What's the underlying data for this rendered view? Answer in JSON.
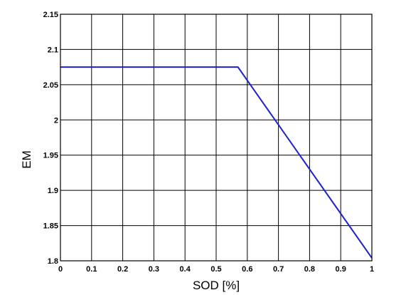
{
  "chart_data": {
    "type": "line",
    "title": "",
    "xlabel": "SOD [%]",
    "ylabel": "EM",
    "xlim": [
      0,
      1
    ],
    "ylim": [
      1.8,
      2.15
    ],
    "xticks": [
      "0",
      "0.1",
      "0.2",
      "0.3",
      "0.4",
      "0.5",
      "0.6",
      "0.7",
      "0.8",
      "0.9",
      "1"
    ],
    "yticks": [
      "1.8",
      "1.85",
      "1.9",
      "1.95",
      "2",
      "2.05",
      "2.1",
      "2.15"
    ],
    "grid": true,
    "series": [
      {
        "color": "#1f1fcf",
        "x": [
          0,
          0.57,
          1
        ],
        "y": [
          2.075,
          2.075,
          1.804
        ]
      }
    ]
  }
}
